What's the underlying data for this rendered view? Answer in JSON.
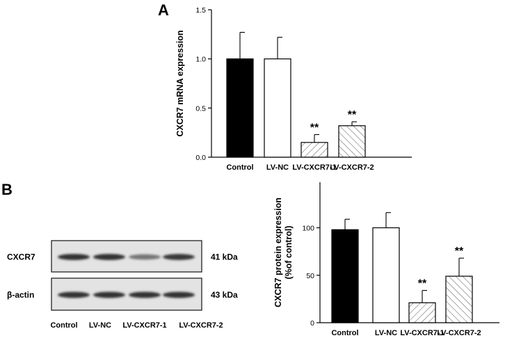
{
  "panels": {
    "a_label": "A",
    "b_label": "B"
  },
  "chart_data": [
    {
      "type": "bar",
      "title": "",
      "xlabel": "",
      "ylabel": "CXCR7 mRNA expression",
      "ylim": [
        0,
        1.5
      ],
      "yticks": [
        0.0,
        0.5,
        1.0,
        1.5
      ],
      "ytick_labels": [
        "0.0",
        "0.5",
        "1.0",
        "1.5"
      ],
      "categories": [
        "Control",
        "LV-NC",
        "LV-CXCR7-1",
        "LV-CXCR7-2"
      ],
      "values": [
        1.0,
        1.0,
        0.15,
        0.32
      ],
      "errors": [
        0.27,
        0.22,
        0.08,
        0.04
      ],
      "significance": [
        "",
        "",
        "**",
        "**"
      ],
      "bar_styles": [
        "solid-black",
        "white",
        "hatched",
        "hatched"
      ],
      "grid": false
    },
    {
      "type": "bar",
      "title": "",
      "xlabel": "",
      "ylabel": "CXCR7 protein expression\n(%of control)",
      "ylim": [
        0,
        148
      ],
      "yticks": [
        0,
        50,
        100
      ],
      "ytick_labels": [
        "0",
        "50",
        "100"
      ],
      "categories": [
        "Control",
        "LV-NC",
        "LV-CXCR7-1",
        "LV-CXCR7-2"
      ],
      "values": [
        98,
        100,
        21,
        49
      ],
      "errors": [
        11,
        16,
        13,
        19
      ],
      "significance": [
        "",
        "",
        "**",
        "**"
      ],
      "bar_styles": [
        "solid-black",
        "white",
        "hatched",
        "hatched"
      ],
      "grid": false
    }
  ],
  "blot": {
    "rows": [
      {
        "protein": "CXCR7",
        "size": "41 kDa",
        "band_intensity": [
          0.95,
          0.95,
          0.55,
          0.9
        ]
      },
      {
        "protein": "β-actin",
        "size": "43 kDa",
        "band_intensity": [
          0.95,
          0.95,
          0.95,
          0.95
        ]
      }
    ],
    "lanes": [
      "Control",
      "LV-NC",
      "LV-CXCR7-1",
      "LV-CXCR7-2"
    ]
  }
}
